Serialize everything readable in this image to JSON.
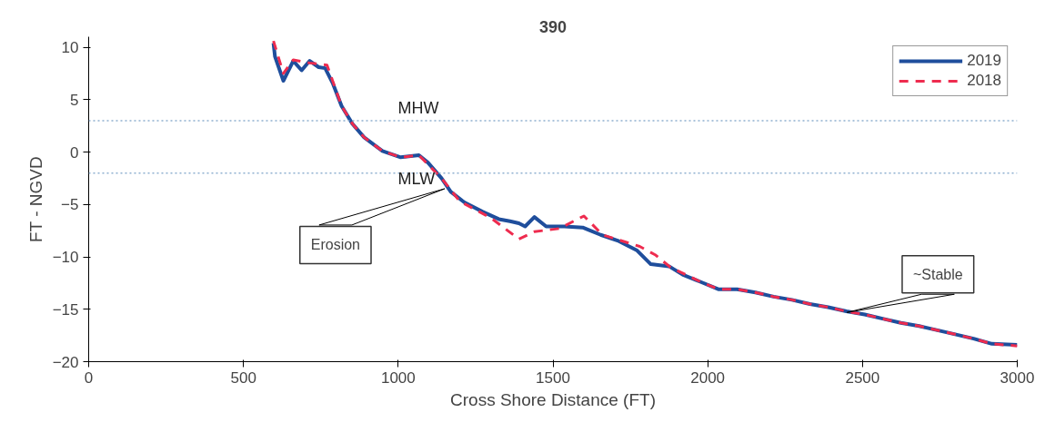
{
  "chart_data": {
    "type": "line",
    "title": "390",
    "xlabel": "Cross Shore Distance (FT)",
    "ylabel": "FT - NGVD",
    "xlim": [
      0,
      3000
    ],
    "ylim": [
      -20,
      11
    ],
    "xticks": [
      0,
      500,
      1000,
      1500,
      2000,
      2500,
      3000
    ],
    "yticks": [
      -20,
      -15,
      -10,
      -5,
      0,
      5,
      10
    ],
    "grid": false,
    "legend": "top right",
    "series": [
      {
        "name": "2019",
        "color": "#1f4e9c",
        "line_style": "solid",
        "x": [
          597,
          602,
          629,
          661,
          688,
          714,
          743,
          764,
          788,
          817,
          852,
          890,
          949,
          1008,
          1067,
          1096,
          1140,
          1170,
          1214,
          1273,
          1325,
          1361,
          1390,
          1410,
          1440,
          1478,
          1537,
          1596,
          1654,
          1713,
          1772,
          1816,
          1875,
          1919,
          1978,
          2036,
          2095,
          2154,
          2213,
          2272,
          2330,
          2389,
          2448,
          2507,
          2565,
          2624,
          2683,
          2771,
          2859,
          2918,
          3000
        ],
        "values": [
          10.4,
          9.1,
          6.8,
          8.7,
          7.8,
          8.7,
          8.1,
          8.0,
          6.6,
          4.4,
          2.7,
          1.4,
          0.1,
          -0.5,
          -0.3,
          -1.0,
          -2.5,
          -3.8,
          -4.8,
          -5.7,
          -6.4,
          -6.6,
          -6.8,
          -7.1,
          -6.2,
          -7.1,
          -7.1,
          -7.2,
          -7.9,
          -8.5,
          -9.4,
          -10.7,
          -10.9,
          -11.7,
          -12.4,
          -13.1,
          -13.1,
          -13.4,
          -13.8,
          -14.1,
          -14.5,
          -14.8,
          -15.2,
          -15.5,
          -15.9,
          -16.3,
          -16.6,
          -17.2,
          -17.8,
          -18.3,
          -18.4
        ]
      },
      {
        "name": "2018",
        "color": "#ee2c4f",
        "line_style": "dashed",
        "x": [
          597,
          629,
          661,
          714,
          770,
          817,
          852,
          890,
          949,
          1008,
          1067,
          1140,
          1199,
          1300,
          1390,
          1440,
          1520,
          1600,
          1660,
          1780,
          1830,
          1880,
          1978,
          2036,
          2095,
          2154,
          2213,
          2272,
          2330,
          2389,
          2448,
          2507,
          2565,
          2624,
          2683,
          2771,
          2859,
          2918,
          3000
        ],
        "values": [
          10.6,
          7.5,
          8.8,
          8.5,
          8.3,
          4.4,
          2.7,
          1.4,
          0.1,
          -0.5,
          -0.3,
          -2.5,
          -4.7,
          -6.3,
          -8.3,
          -7.6,
          -7.3,
          -6.1,
          -7.9,
          -9.0,
          -9.8,
          -11.0,
          -12.4,
          -13.1,
          -13.1,
          -13.4,
          -13.8,
          -14.1,
          -14.5,
          -14.8,
          -15.2,
          -15.5,
          -15.9,
          -16.3,
          -16.6,
          -17.2,
          -17.8,
          -18.3,
          -18.5
        ]
      }
    ],
    "ref_lines": [
      {
        "axis": "y",
        "value": 3,
        "label": "MHW",
        "color": "#8fb0d0",
        "line_style": "dotted"
      },
      {
        "axis": "y",
        "value": -2,
        "label": "MLW",
        "color": "#8fb0d0",
        "line_style": "dotted"
      }
    ],
    "annotations": [
      {
        "text": "Erosion",
        "x": 1150,
        "y": -3.5
      },
      {
        "text": "~Stable",
        "x": 2450,
        "y": -15.3
      }
    ]
  }
}
